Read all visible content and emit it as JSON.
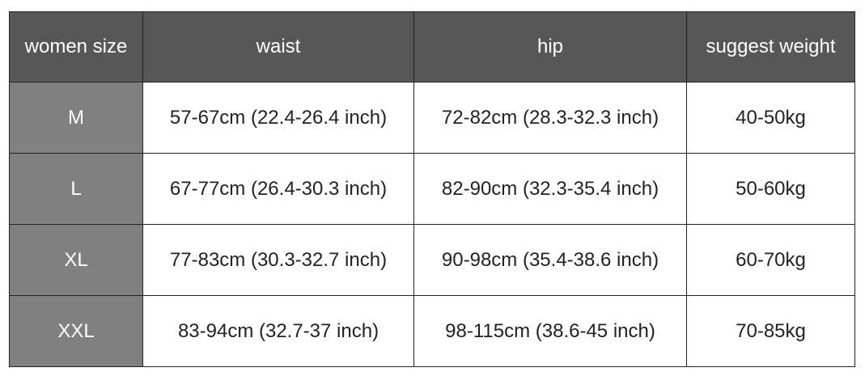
{
  "colors": {
    "header_bg": "#575757",
    "size_column_bg": "#808080",
    "header_text": "#ffffff",
    "cell_text": "#222222"
  },
  "table": {
    "headers": [
      "women size",
      "waist",
      "hip",
      "suggest weight"
    ],
    "rows": [
      [
        "M",
        "57-67cm (22.4-26.4 inch)",
        "72-82cm (28.3-32.3 inch)",
        "40-50kg"
      ],
      [
        "L",
        "67-77cm (26.4-30.3 inch)",
        "82-90cm (32.3-35.4 inch)",
        "50-60kg"
      ],
      [
        "XL",
        "77-83cm (30.3-32.7 inch)",
        "90-98cm (35.4-38.6 inch)",
        "60-70kg"
      ],
      [
        "XXL",
        "83-94cm (32.7-37 inch)",
        "98-115cm (38.6-45 inch)",
        "70-85kg"
      ]
    ]
  }
}
